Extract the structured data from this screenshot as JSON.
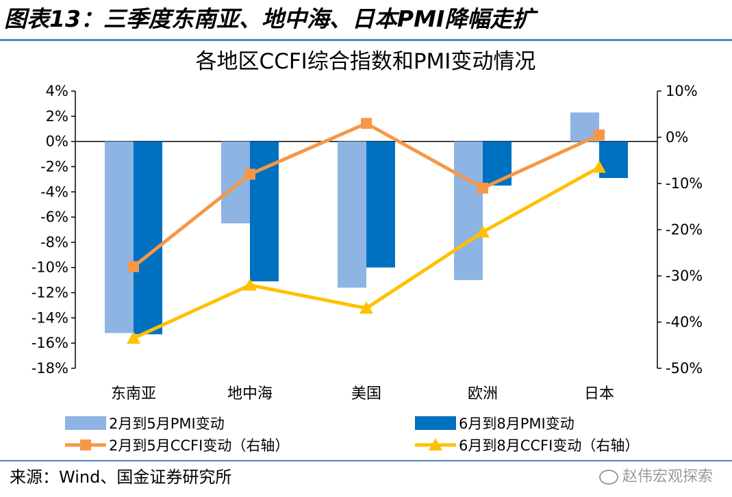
{
  "heading": "图表13：三季度东南亚、地中海、日本PMI降幅走扩",
  "source": "来源：Wind、国金证券研究所",
  "watermark": "赵伟宏观探索",
  "colors": {
    "bar_light": "#8eb4e3",
    "bar_dark": "#0070c0",
    "line_orange": "#f79646",
    "line_yellow": "#ffc000",
    "rule_blue": "#4a86c8"
  },
  "chart_data": {
    "type": "bar",
    "title": "各地区CCFI综合指数和PMI变动情况",
    "categories": [
      "东南亚",
      "地中海",
      "美国",
      "欧洲",
      "日本"
    ],
    "left_axis": {
      "min": -18,
      "max": 4,
      "step": 2,
      "unit": "%",
      "ticks": [
        "4%",
        "2%",
        "0%",
        "-2%",
        "-4%",
        "-6%",
        "-8%",
        "-10%",
        "-12%",
        "-14%",
        "-16%",
        "-18%"
      ]
    },
    "right_axis": {
      "min": -50,
      "max": 10,
      "step": 10,
      "unit": "%",
      "ticks": [
        "10%",
        "0%",
        "-10%",
        "-20%",
        "-30%",
        "-40%",
        "-50%"
      ]
    },
    "series": [
      {
        "name": "2月到5月PMI变动",
        "kind": "bar",
        "axis": "left",
        "color": "#8eb4e3",
        "values": [
          -15.2,
          -6.5,
          -11.6,
          -11.0,
          2.3
        ]
      },
      {
        "name": "6月到8月PMI变动",
        "kind": "bar",
        "axis": "left",
        "color": "#0070c0",
        "values": [
          -15.3,
          -11.1,
          -10.0,
          -3.5,
          -2.9
        ]
      },
      {
        "name": "2月到5月CCFI变动（右轴）",
        "kind": "line",
        "marker": "square",
        "axis": "right",
        "color": "#f79646",
        "values": [
          -28,
          -8,
          3,
          -11,
          0.5
        ]
      },
      {
        "name": "6月到8月CCFI变动（右轴）",
        "kind": "line",
        "marker": "triangle",
        "axis": "right",
        "color": "#ffc000",
        "values": [
          -43.5,
          -32,
          -37,
          -20.5,
          -6.5
        ]
      }
    ],
    "legend_position": "bottom",
    "grid": false
  }
}
